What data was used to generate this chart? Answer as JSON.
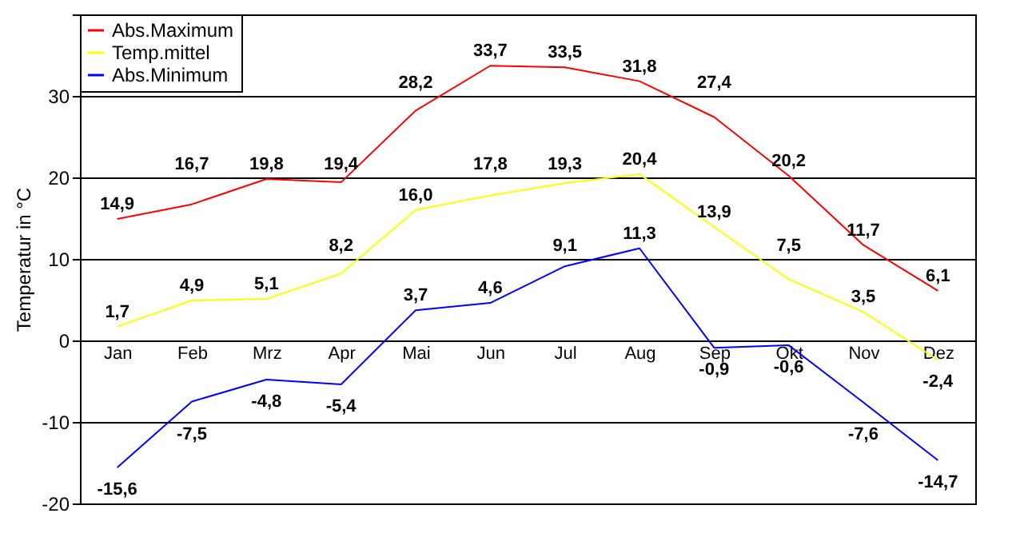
{
  "chart_data": {
    "type": "line",
    "ylabel": "Temperatur in °C",
    "categories": [
      "Jan",
      "Feb",
      "Mrz",
      "Apr",
      "Mai",
      "Jun",
      "Jul",
      "Aug",
      "Sep",
      "Okt",
      "Nov",
      "Dez"
    ],
    "series": [
      {
        "name": "Abs.Maximum",
        "color": "#ff0000",
        "values": [
          14.9,
          16.7,
          19.8,
          19.4,
          28.2,
          33.7,
          33.5,
          31.8,
          27.4,
          20.2,
          11.7,
          6.1
        ],
        "value_labels": [
          "14,9",
          "16,7",
          "19,8",
          "19,4",
          "28,2",
          "33,7",
          "33,5",
          "31,8",
          "27,4",
          "20,2",
          "11,7",
          "6,1"
        ]
      },
      {
        "name": "Temp.mittel",
        "color": "#ffff00",
        "values": [
          1.7,
          4.9,
          5.1,
          8.2,
          16.0,
          17.8,
          19.3,
          20.4,
          13.9,
          7.5,
          3.5,
          -2.4
        ],
        "value_labels": [
          "1,7",
          "4,9",
          "5,1",
          "8,2",
          "16,0",
          "17,8",
          "19,3",
          "20,4",
          "13,9",
          "7,5",
          "3,5",
          "-2,4"
        ]
      },
      {
        "name": "Abs.Minimum",
        "color": "#0000ff",
        "values": [
          -15.6,
          -7.5,
          -4.8,
          -5.4,
          3.7,
          4.6,
          9.1,
          11.3,
          -0.9,
          -0.6,
          -7.6,
          -14.7
        ],
        "value_labels": [
          "-15,6",
          "-7,5",
          "-4,8",
          "-5,4",
          "3,7",
          "4,6",
          "9,1",
          "11,3",
          "-0,9",
          "-0,6",
          "-7,6",
          "-14,7"
        ]
      }
    ],
    "ylim": [
      -20,
      40
    ],
    "yticks": [
      -20,
      -10,
      0,
      10,
      20,
      30,
      {
        "value": 40,
        "label": null
      }
    ],
    "grid": "y",
    "legend": "top left",
    "marker": "none",
    "line_style": "solid"
  }
}
